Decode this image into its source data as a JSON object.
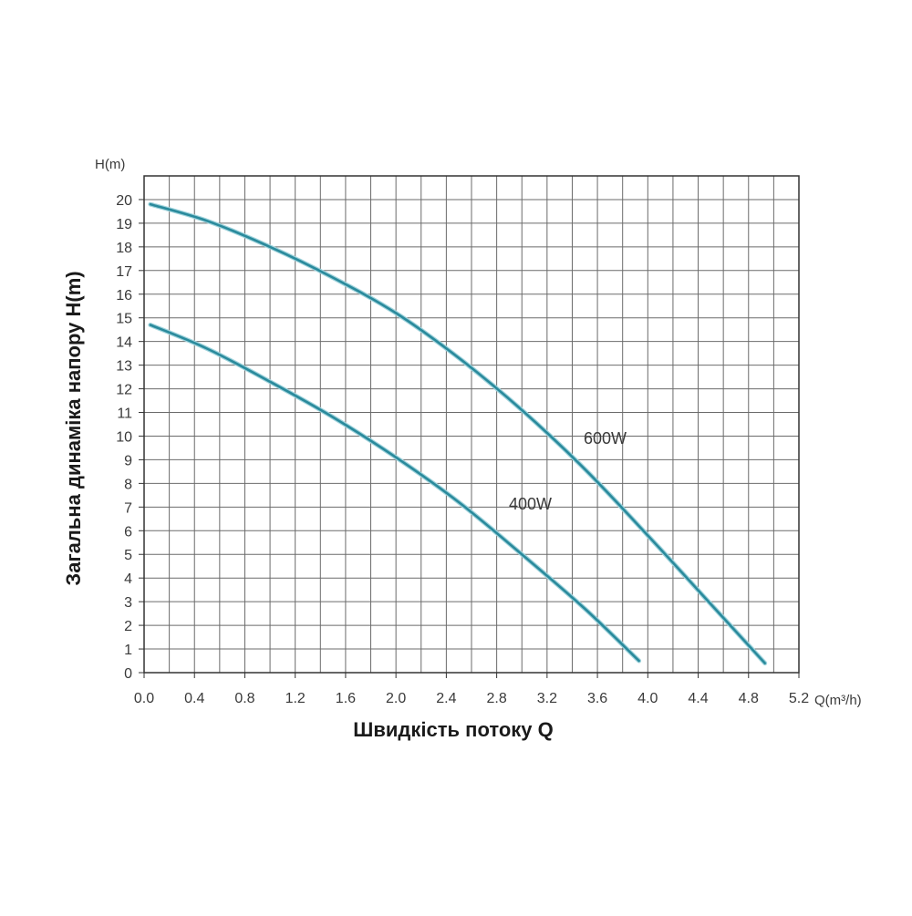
{
  "chart_data": {
    "type": "line",
    "title": "",
    "xlabel": "Швидкість потоку Q",
    "ylabel": "Загальна динаміка напору H(m)",
    "x_unit": "Q(m³/h)",
    "y_unit": "H(m)",
    "xlim": [
      0.0,
      5.2
    ],
    "ylim": [
      0,
      21
    ],
    "x_ticks": [
      "0.0",
      "0.4",
      "0.8",
      "1.2",
      "1.6",
      "2.0",
      "2.4",
      "2.8",
      "3.2",
      "3.6",
      "4.0",
      "4.4",
      "4.8",
      "5.2"
    ],
    "y_ticks": [
      "0",
      "1",
      "2",
      "3",
      "4",
      "5",
      "6",
      "7",
      "8",
      "9",
      "10",
      "11",
      "12",
      "13",
      "14",
      "15",
      "16",
      "17",
      "18",
      "19",
      "20"
    ],
    "grid": true,
    "line_color": "#2a8a9c",
    "series": [
      {
        "name": "600W",
        "x": [
          0.05,
          0.5,
          1.0,
          1.5,
          2.0,
          2.5,
          3.0,
          3.5,
          4.0,
          4.5,
          4.93
        ],
        "y": [
          19.8,
          19.1,
          18.0,
          16.7,
          15.2,
          13.3,
          11.1,
          8.6,
          5.8,
          2.9,
          0.4
        ]
      },
      {
        "name": "400W",
        "x": [
          0.05,
          0.5,
          1.0,
          1.5,
          2.0,
          2.5,
          3.0,
          3.5,
          3.93
        ],
        "y": [
          14.7,
          13.7,
          12.3,
          10.8,
          9.1,
          7.2,
          5.0,
          2.7,
          0.5
        ]
      }
    ]
  }
}
